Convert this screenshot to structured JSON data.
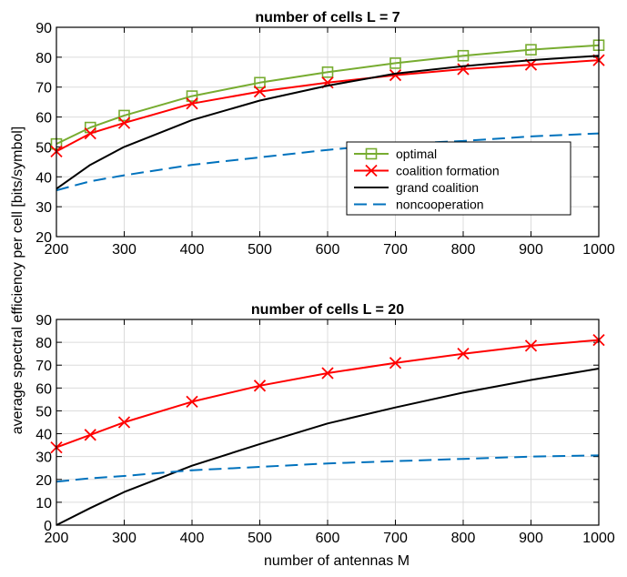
{
  "figure": {
    "ylabel": "average spectral efficiency per cell [bits/symbol]",
    "xlabel": "number of antennas M"
  },
  "chart_data": [
    {
      "type": "line",
      "title": "number of cells L = 7",
      "xlim": [
        200,
        1000
      ],
      "ylim": [
        20,
        90
      ],
      "xticks": [
        200,
        300,
        400,
        500,
        600,
        700,
        800,
        900,
        1000
      ],
      "yticks": [
        20,
        30,
        40,
        50,
        60,
        70,
        80,
        90
      ],
      "grid": true,
      "legend_position": "right-center",
      "x": [
        200,
        250,
        300,
        400,
        500,
        600,
        700,
        800,
        900,
        1000
      ],
      "series": [
        {
          "name": "optimal",
          "color": "#77AC30",
          "marker": "square",
          "dash": "solid",
          "values": [
            51,
            56.5,
            60.5,
            67,
            71.5,
            75,
            78,
            80.5,
            82.5,
            84
          ]
        },
        {
          "name": "coalition formation",
          "color": "#FF0000",
          "marker": "x",
          "dash": "solid",
          "values": [
            48.5,
            54.5,
            58,
            64.5,
            68.5,
            71.5,
            74,
            76,
            77.5,
            79
          ]
        },
        {
          "name": "grand coalition",
          "color": "#000000",
          "marker": "none",
          "dash": "solid",
          "values": [
            36,
            44,
            50,
            59,
            65.5,
            70.5,
            74.5,
            77,
            79,
            80.5
          ]
        },
        {
          "name": "noncooperation",
          "color": "#0072BD",
          "marker": "none",
          "dash": "dashed",
          "values": [
            35.5,
            38.5,
            40.5,
            44,
            46.5,
            49,
            51,
            52,
            53.5,
            54.5
          ]
        }
      ]
    },
    {
      "type": "line",
      "title": "number of cells L = 20",
      "xlim": [
        200,
        1000
      ],
      "ylim": [
        0,
        90
      ],
      "xticks": [
        200,
        300,
        400,
        500,
        600,
        700,
        800,
        900,
        1000
      ],
      "yticks": [
        0,
        10,
        20,
        30,
        40,
        50,
        60,
        70,
        80,
        90
      ],
      "grid": true,
      "x": [
        200,
        250,
        300,
        400,
        500,
        600,
        700,
        800,
        900,
        1000
      ],
      "series": [
        {
          "name": "coalition formation",
          "color": "#FF0000",
          "marker": "x",
          "dash": "solid",
          "values": [
            34,
            39.5,
            45,
            54,
            61,
            66.5,
            71,
            75,
            78.5,
            81
          ]
        },
        {
          "name": "grand coalition",
          "color": "#000000",
          "marker": "none",
          "dash": "solid",
          "values": [
            0,
            7.5,
            14.5,
            26,
            35.5,
            44.5,
            51.5,
            58,
            63.5,
            68.5
          ]
        },
        {
          "name": "noncooperation",
          "color": "#0072BD",
          "marker": "none",
          "dash": "dashed",
          "values": [
            19,
            20.5,
            21.5,
            24,
            25.5,
            27,
            28,
            29,
            30,
            30.5
          ]
        }
      ]
    }
  ]
}
